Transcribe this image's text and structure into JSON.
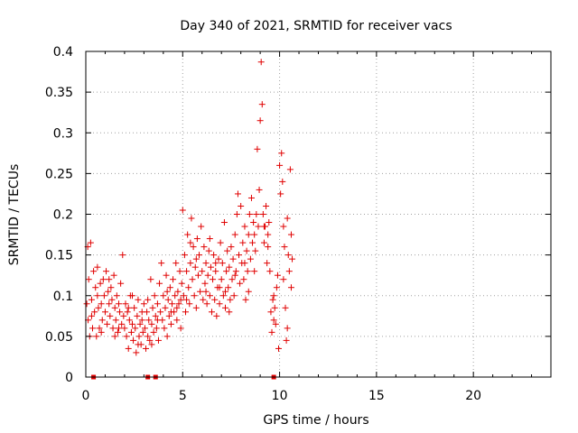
{
  "chart_data": {
    "type": "scatter",
    "title": "Day 340 of 2021, SRMTID for receiver vacs",
    "xlabel": "GPS time / hours",
    "ylabel": "SRMTID / TECUs",
    "xlim": [
      0,
      24
    ],
    "ylim": [
      0,
      0.4
    ],
    "xticks": [
      0,
      5,
      10,
      15,
      20
    ],
    "yticks": [
      0,
      0.05,
      0.1,
      0.15,
      0.2,
      0.25,
      0.3,
      0.35,
      0.4
    ],
    "xtick_labels": [
      "0",
      "5",
      "10",
      "15",
      "20"
    ],
    "ytick_labels": [
      "0",
      "0.05",
      "0.1",
      "0.15",
      "0.2",
      "0.25",
      "0.3",
      "0.35",
      "0.4"
    ],
    "grid": true,
    "marker": "+",
    "color": "#e00000",
    "series": [
      {
        "name": "vacs",
        "points": [
          [
            0.05,
            0.09
          ],
          [
            0.1,
            0.16
          ],
          [
            0.12,
            0.07
          ],
          [
            0.15,
            0.12
          ],
          [
            0.2,
            0.05
          ],
          [
            0.25,
            0.165
          ],
          [
            0.3,
            0.095
          ],
          [
            0.35,
            0.06
          ],
          [
            0.4,
            0.13
          ],
          [
            0.45,
            0.08
          ],
          [
            0.5,
            0.11
          ],
          [
            0.55,
            0.05
          ],
          [
            0.6,
            0.1
          ],
          [
            0.65,
            0.085
          ],
          [
            0.7,
            0.06
          ],
          [
            0.75,
            0.115
          ],
          [
            0.8,
            0.09
          ],
          [
            0.85,
            0.07
          ],
          [
            0.9,
            0.12
          ],
          [
            0.95,
            0.1
          ],
          [
            1.0,
            0.08
          ],
          [
            1.05,
            0.13
          ],
          [
            1.1,
            0.065
          ],
          [
            1.15,
            0.105
          ],
          [
            1.2,
            0.09
          ],
          [
            1.25,
            0.075
          ],
          [
            1.3,
            0.11
          ],
          [
            1.35,
            0.095
          ],
          [
            1.4,
            0.06
          ],
          [
            1.45,
            0.125
          ],
          [
            1.5,
            0.085
          ],
          [
            1.55,
            0.07
          ],
          [
            1.6,
            0.1
          ],
          [
            1.65,
            0.055
          ],
          [
            1.7,
            0.09
          ],
          [
            1.75,
            0.08
          ],
          [
            1.8,
            0.115
          ],
          [
            1.85,
            0.065
          ],
          [
            1.9,
            0.15
          ],
          [
            1.95,
            0.075
          ],
          [
            2.0,
            0.06
          ],
          [
            2.05,
            0.09
          ],
          [
            2.1,
            0.05
          ],
          [
            2.15,
            0.08
          ],
          [
            2.2,
            0.035
          ],
          [
            2.25,
            0.07
          ],
          [
            2.3,
            0.1
          ],
          [
            2.35,
            0.055
          ],
          [
            2.4,
            0.065
          ],
          [
            2.45,
            0.045
          ],
          [
            2.5,
            0.085
          ],
          [
            2.55,
            0.06
          ],
          [
            2.6,
            0.03
          ],
          [
            2.65,
            0.075
          ],
          [
            2.7,
            0.095
          ],
          [
            2.75,
            0.05
          ],
          [
            2.8,
            0.065
          ],
          [
            2.85,
            0.04
          ],
          [
            2.9,
            0.07
          ],
          [
            2.95,
            0.055
          ],
          [
            3.0,
            0.09
          ],
          [
            3.05,
            0.06
          ],
          [
            3.1,
            0.035
          ],
          [
            3.15,
            0.08
          ],
          [
            3.2,
            0.05
          ],
          [
            3.25,
            0.07
          ],
          [
            3.3,
            0.045
          ],
          [
            3.35,
            0.12
          ],
          [
            3.4,
            0.065
          ],
          [
            3.45,
            0.085
          ],
          [
            3.5,
            0.055
          ],
          [
            3.55,
            0.1
          ],
          [
            3.6,
            0.075
          ],
          [
            3.65,
            0.06
          ],
          [
            3.7,
            0.09
          ],
          [
            3.75,
            0.045
          ],
          [
            3.8,
            0.115
          ],
          [
            3.85,
            0.08
          ],
          [
            3.9,
            0.14
          ],
          [
            3.95,
            0.07
          ],
          [
            4.0,
            0.1
          ],
          [
            4.05,
            0.06
          ],
          [
            4.1,
            0.085
          ],
          [
            4.15,
            0.125
          ],
          [
            4.2,
            0.05
          ],
          [
            4.25,
            0.095
          ],
          [
            4.3,
            0.075
          ],
          [
            4.35,
            0.11
          ],
          [
            4.4,
            0.065
          ],
          [
            4.45,
            0.09
          ],
          [
            4.5,
            0.12
          ],
          [
            4.55,
            0.08
          ],
          [
            4.6,
            0.1
          ],
          [
            4.65,
            0.14
          ],
          [
            4.7,
            0.07
          ],
          [
            4.75,
            0.105
          ],
          [
            4.8,
            0.09
          ],
          [
            4.85,
            0.13
          ],
          [
            4.9,
            0.06
          ],
          [
            4.95,
            0.115
          ],
          [
            5.0,
            0.205
          ],
          [
            5.05,
            0.1
          ],
          [
            5.1,
            0.15
          ],
          [
            5.15,
            0.08
          ],
          [
            5.2,
            0.13
          ],
          [
            5.25,
            0.175
          ],
          [
            5.3,
            0.11
          ],
          [
            5.35,
            0.09
          ],
          [
            5.4,
            0.14
          ],
          [
            5.45,
            0.195
          ],
          [
            5.5,
            0.12
          ],
          [
            5.55,
            0.16
          ],
          [
            5.6,
            0.1
          ],
          [
            5.65,
            0.135
          ],
          [
            5.7,
            0.085
          ],
          [
            5.75,
            0.17
          ],
          [
            5.8,
            0.125
          ],
          [
            5.85,
            0.15
          ],
          [
            5.9,
            0.105
          ],
          [
            5.95,
            0.185
          ],
          [
            6.0,
            0.13
          ],
          [
            6.05,
            0.095
          ],
          [
            6.1,
            0.16
          ],
          [
            6.15,
            0.115
          ],
          [
            6.2,
            0.14
          ],
          [
            6.25,
            0.09
          ],
          [
            6.3,
            0.125
          ],
          [
            6.35,
            0.155
          ],
          [
            6.4,
            0.1
          ],
          [
            6.45,
            0.135
          ],
          [
            6.5,
            0.08
          ],
          [
            6.55,
            0.12
          ],
          [
            6.6,
            0.15
          ],
          [
            6.65,
            0.095
          ],
          [
            6.7,
            0.13
          ],
          [
            6.75,
            0.075
          ],
          [
            6.8,
            0.11
          ],
          [
            6.85,
            0.145
          ],
          [
            6.9,
            0.09
          ],
          [
            6.95,
            0.165
          ],
          [
            7.0,
            0.12
          ],
          [
            7.05,
            0.14
          ],
          [
            7.1,
            0.1
          ],
          [
            7.15,
            0.19
          ],
          [
            7.2,
            0.085
          ],
          [
            7.25,
            0.13
          ],
          [
            7.3,
            0.155
          ],
          [
            7.35,
            0.11
          ],
          [
            7.4,
            0.135
          ],
          [
            7.45,
            0.095
          ],
          [
            7.5,
            0.16
          ],
          [
            7.55,
            0.12
          ],
          [
            7.6,
            0.145
          ],
          [
            7.65,
            0.1
          ],
          [
            7.7,
            0.175
          ],
          [
            7.75,
            0.13
          ],
          [
            7.8,
            0.2
          ],
          [
            7.85,
            0.225
          ],
          [
            7.9,
            0.15
          ],
          [
            7.95,
            0.115
          ],
          [
            8.0,
            0.21
          ],
          [
            8.05,
            0.14
          ],
          [
            8.1,
            0.165
          ],
          [
            8.15,
            0.12
          ],
          [
            8.2,
            0.185
          ],
          [
            8.25,
            0.095
          ],
          [
            8.3,
            0.155
          ],
          [
            8.35,
            0.13
          ],
          [
            8.4,
            0.175
          ],
          [
            8.45,
            0.2
          ],
          [
            8.5,
            0.145
          ],
          [
            8.55,
            0.22
          ],
          [
            8.6,
            0.165
          ],
          [
            8.65,
            0.19
          ],
          [
            8.7,
            0.175
          ],
          [
            8.75,
            0.155
          ],
          [
            8.8,
            0.2
          ],
          [
            8.85,
            0.28
          ],
          [
            8.9,
            0.185
          ],
          [
            8.95,
            0.23
          ],
          [
            9.0,
            0.315
          ],
          [
            9.05,
            0.387
          ],
          [
            9.1,
            0.335
          ],
          [
            9.15,
            0.2
          ],
          [
            9.2,
            0.165
          ],
          [
            9.25,
            0.185
          ],
          [
            9.3,
            0.21
          ],
          [
            9.35,
            0.14
          ],
          [
            9.4,
            0.175
          ],
          [
            9.45,
            0.19
          ],
          [
            9.5,
            0.13
          ],
          [
            9.55,
            0.08
          ],
          [
            9.6,
            0.055
          ],
          [
            9.65,
            0.095
          ],
          [
            9.7,
            0.07
          ],
          [
            9.75,
            0.085
          ],
          [
            9.8,
            0.065
          ],
          [
            9.85,
            0.11
          ],
          [
            9.9,
            0.125
          ],
          [
            9.95,
            0.035
          ],
          [
            10.0,
            0.26
          ],
          [
            10.05,
            0.225
          ],
          [
            10.1,
            0.275
          ],
          [
            10.15,
            0.24
          ],
          [
            10.2,
            0.185
          ],
          [
            10.25,
            0.16
          ],
          [
            10.3,
            0.085
          ],
          [
            10.35,
            0.045
          ],
          [
            10.4,
            0.195
          ],
          [
            10.45,
            0.15
          ],
          [
            10.5,
            0.13
          ],
          [
            10.55,
            0.255
          ],
          [
            10.6,
            0.175
          ],
          [
            10.65,
            0.145
          ],
          [
            0.3,
            0.075
          ],
          [
            0.8,
            0.055
          ],
          [
            1.2,
            0.12
          ],
          [
            1.7,
            0.06
          ],
          [
            2.2,
            0.085
          ],
          [
            2.7,
            0.04
          ],
          [
            3.2,
            0.095
          ],
          [
            3.7,
            0.07
          ],
          [
            4.2,
            0.105
          ],
          [
            4.7,
            0.085
          ],
          [
            5.2,
            0.095
          ],
          [
            5.7,
            0.145
          ],
          [
            6.2,
            0.105
          ],
          [
            6.7,
            0.14
          ],
          [
            7.2,
            0.105
          ],
          [
            7.7,
            0.125
          ],
          [
            8.2,
            0.14
          ],
          [
            8.7,
            0.13
          ],
          [
            9.2,
            0.185
          ],
          [
            9.7,
            0.1
          ],
          [
            10.2,
            0.12
          ],
          [
            10.6,
            0.11
          ],
          [
            0.6,
            0.135
          ],
          [
            1.5,
            0.05
          ],
          [
            2.4,
            0.1
          ],
          [
            3.4,
            0.04
          ],
          [
            4.4,
            0.08
          ],
          [
            5.4,
            0.165
          ],
          [
            6.4,
            0.17
          ],
          [
            7.4,
            0.08
          ],
          [
            8.4,
            0.105
          ],
          [
            9.4,
            0.16
          ],
          [
            10.4,
            0.06
          ],
          [
            2.9,
            0.08
          ],
          [
            4.9,
            0.095
          ],
          [
            6.9,
            0.11
          ]
        ]
      }
    ],
    "zero_markers_x": [
      0.4,
      3.2,
      3.6,
      9.7
    ]
  }
}
